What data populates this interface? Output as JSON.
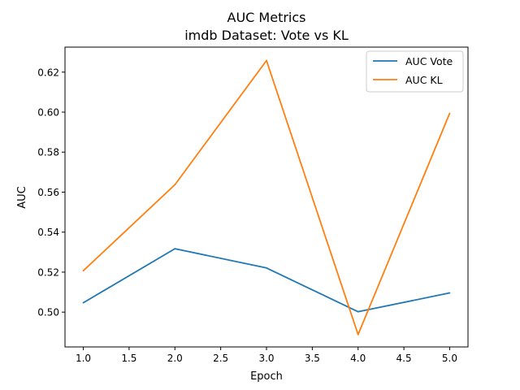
{
  "chart_data": {
    "type": "line",
    "title": "AUC Metrics",
    "subtitle": "imdb Dataset: Vote vs KL",
    "xlabel": "Epoch",
    "ylabel": "AUC",
    "x": [
      1,
      2,
      3,
      4,
      5
    ],
    "xlim": [
      0.8,
      5.2
    ],
    "ylim": [
      0.4826,
      0.6325
    ],
    "xticks": [
      "1.0",
      "1.5",
      "2.0",
      "2.5",
      "3.0",
      "3.5",
      "4.0",
      "4.5",
      "5.0"
    ],
    "yticks": [
      "0.50",
      "0.52",
      "0.54",
      "0.56",
      "0.58",
      "0.60",
      "0.62"
    ],
    "grid": false,
    "legend_position": "top-right",
    "series": [
      {
        "name": "AUC Vote",
        "color": "#1f77b4",
        "values": [
          0.5047,
          0.5317,
          0.5221,
          0.5002,
          0.5096
        ]
      },
      {
        "name": "AUC KL",
        "color": "#ff7f0e",
        "values": [
          0.5207,
          0.5637,
          0.6258,
          0.4888,
          0.5994
        ]
      }
    ]
  }
}
